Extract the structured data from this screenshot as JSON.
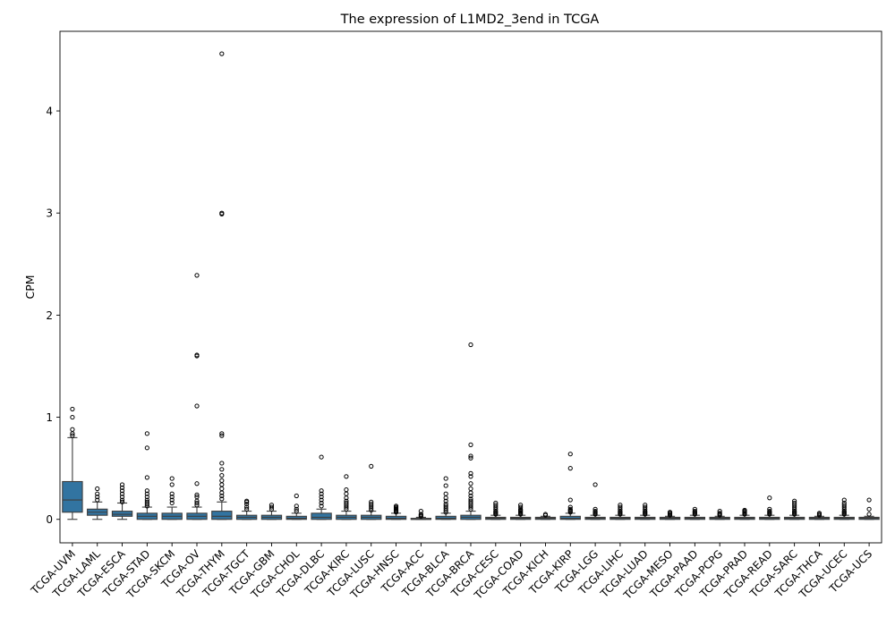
{
  "chart_data": {
    "type": "box",
    "title": "The expression of L1MD2_3end in TCGA",
    "xlabel": "",
    "ylabel": "CPM",
    "ylim": [
      -0.23,
      4.78
    ],
    "yticks": [
      0,
      1,
      2,
      3,
      4
    ],
    "grid": false,
    "box_color": "#3274a1",
    "categories": [
      "TCGA-UVM",
      "TCGA-LAML",
      "TCGA-ESCA",
      "TCGA-STAD",
      "TCGA-SKCM",
      "TCGA-OV",
      "TCGA-THYM",
      "TCGA-TGCT",
      "TCGA-GBM",
      "TCGA-CHOL",
      "TCGA-DLBC",
      "TCGA-KIRC",
      "TCGA-LUSC",
      "TCGA-HNSC",
      "TCGA-ACC",
      "TCGA-BLCA",
      "TCGA-BRCA",
      "TCGA-CESC",
      "TCGA-COAD",
      "TCGA-KICH",
      "TCGA-KIRP",
      "TCGA-LGG",
      "TCGA-LIHC",
      "TCGA-LUAD",
      "TCGA-MESO",
      "TCGA-PAAD",
      "TCGA-PCPG",
      "TCGA-PRAD",
      "TCGA-READ",
      "TCGA-SARC",
      "TCGA-THCA",
      "TCGA-UCEC",
      "TCGA-UCS"
    ],
    "boxes": [
      {
        "min": 0.0,
        "q1": 0.07,
        "median": 0.19,
        "q3": 0.37,
        "max": 0.8,
        "outliers": [
          0.82,
          0.84,
          0.88,
          1.0,
          1.08
        ]
      },
      {
        "min": 0.0,
        "q1": 0.04,
        "median": 0.07,
        "q3": 0.1,
        "max": 0.17,
        "outliers": [
          0.19,
          0.22,
          0.25,
          0.3
        ]
      },
      {
        "min": 0.0,
        "q1": 0.03,
        "median": 0.05,
        "q3": 0.08,
        "max": 0.16,
        "outliers": [
          0.17,
          0.19,
          0.22,
          0.25,
          0.28,
          0.31,
          0.34
        ]
      },
      {
        "min": 0.0,
        "q1": 0.0,
        "median": 0.03,
        "q3": 0.06,
        "max": 0.12,
        "outliers": [
          0.13,
          0.15,
          0.17,
          0.19,
          0.22,
          0.25,
          0.28,
          0.41,
          0.7,
          0.84
        ]
      },
      {
        "min": 0.0,
        "q1": 0.0,
        "median": 0.03,
        "q3": 0.06,
        "max": 0.12,
        "outliers": [
          0.16,
          0.19,
          0.22,
          0.25,
          0.34,
          0.4
        ]
      },
      {
        "min": 0.0,
        "q1": 0.0,
        "median": 0.03,
        "q3": 0.06,
        "max": 0.12,
        "outliers": [
          0.14,
          0.16,
          0.18,
          0.22,
          0.24,
          0.35,
          1.11,
          1.6,
          1.61,
          2.39
        ]
      },
      {
        "min": 0.0,
        "q1": 0.0,
        "median": 0.03,
        "q3": 0.08,
        "max": 0.17,
        "outliers": [
          0.2,
          0.23,
          0.26,
          0.3,
          0.34,
          0.38,
          0.43,
          0.49,
          0.55,
          0.82,
          0.84,
          2.99,
          3.0,
          4.56
        ]
      },
      {
        "min": 0.0,
        "q1": 0.0,
        "median": 0.02,
        "q3": 0.04,
        "max": 0.08,
        "outliers": [
          0.1,
          0.12,
          0.15,
          0.17,
          0.18
        ]
      },
      {
        "min": 0.0,
        "q1": 0.0,
        "median": 0.02,
        "q3": 0.04,
        "max": 0.08,
        "outliers": [
          0.1,
          0.12,
          0.14
        ]
      },
      {
        "min": 0.0,
        "q1": 0.0,
        "median": 0.01,
        "q3": 0.03,
        "max": 0.06,
        "outliers": [
          0.08,
          0.1,
          0.13,
          0.23
        ]
      },
      {
        "min": 0.0,
        "q1": 0.0,
        "median": 0.02,
        "q3": 0.06,
        "max": 0.1,
        "outliers": [
          0.13,
          0.16,
          0.19,
          0.22,
          0.25,
          0.28,
          0.61
        ]
      },
      {
        "min": 0.0,
        "q1": 0.0,
        "median": 0.02,
        "q3": 0.04,
        "max": 0.08,
        "outliers": [
          0.1,
          0.12,
          0.14,
          0.16,
          0.18,
          0.21,
          0.25,
          0.29,
          0.42
        ]
      },
      {
        "min": 0.0,
        "q1": 0.0,
        "median": 0.02,
        "q3": 0.04,
        "max": 0.08,
        "outliers": [
          0.09,
          0.11,
          0.13,
          0.15,
          0.17,
          0.52
        ]
      },
      {
        "min": 0.0,
        "q1": 0.0,
        "median": 0.01,
        "q3": 0.03,
        "max": 0.06,
        "outliers": [
          0.07,
          0.08,
          0.09,
          0.1,
          0.11,
          0.12,
          0.13
        ]
      },
      {
        "min": 0.0,
        "q1": 0.0,
        "median": 0.0,
        "q3": 0.01,
        "max": 0.02,
        "outliers": [
          0.03,
          0.04,
          0.05,
          0.08
        ]
      },
      {
        "min": 0.0,
        "q1": 0.0,
        "median": 0.01,
        "q3": 0.03,
        "max": 0.06,
        "outliers": [
          0.07,
          0.09,
          0.11,
          0.13,
          0.15,
          0.18,
          0.21,
          0.25,
          0.33,
          0.4
        ]
      },
      {
        "min": 0.0,
        "q1": 0.0,
        "median": 0.02,
        "q3": 0.04,
        "max": 0.08,
        "outliers": [
          0.1,
          0.12,
          0.14,
          0.16,
          0.18,
          0.2,
          0.23,
          0.26,
          0.3,
          0.35,
          0.42,
          0.45,
          0.6,
          0.62,
          0.73,
          1.71
        ]
      },
      {
        "min": 0.0,
        "q1": 0.0,
        "median": 0.01,
        "q3": 0.02,
        "max": 0.04,
        "outliers": [
          0.05,
          0.06,
          0.07,
          0.08,
          0.1,
          0.12,
          0.14,
          0.16
        ]
      },
      {
        "min": 0.0,
        "q1": 0.0,
        "median": 0.01,
        "q3": 0.02,
        "max": 0.04,
        "outliers": [
          0.05,
          0.06,
          0.07,
          0.08,
          0.09,
          0.1,
          0.12,
          0.14
        ]
      },
      {
        "min": 0.0,
        "q1": 0.0,
        "median": 0.01,
        "q3": 0.02,
        "max": 0.03,
        "outliers": [
          0.04,
          0.05
        ]
      },
      {
        "min": 0.0,
        "q1": 0.0,
        "median": 0.01,
        "q3": 0.03,
        "max": 0.06,
        "outliers": [
          0.07,
          0.08,
          0.09,
          0.1,
          0.12,
          0.19,
          0.5,
          0.64
        ]
      },
      {
        "min": 0.0,
        "q1": 0.0,
        "median": 0.01,
        "q3": 0.02,
        "max": 0.04,
        "outliers": [
          0.05,
          0.06,
          0.07,
          0.08,
          0.1,
          0.34
        ]
      },
      {
        "min": 0.0,
        "q1": 0.0,
        "median": 0.01,
        "q3": 0.02,
        "max": 0.04,
        "outliers": [
          0.05,
          0.06,
          0.07,
          0.08,
          0.1,
          0.12,
          0.14
        ]
      },
      {
        "min": 0.0,
        "q1": 0.0,
        "median": 0.01,
        "q3": 0.02,
        "max": 0.04,
        "outliers": [
          0.05,
          0.06,
          0.07,
          0.08,
          0.1,
          0.12,
          0.14
        ]
      },
      {
        "min": 0.0,
        "q1": 0.0,
        "median": 0.01,
        "q3": 0.02,
        "max": 0.03,
        "outliers": [
          0.04,
          0.05,
          0.06,
          0.07
        ]
      },
      {
        "min": 0.0,
        "q1": 0.0,
        "median": 0.01,
        "q3": 0.02,
        "max": 0.04,
        "outliers": [
          0.05,
          0.06,
          0.07,
          0.08,
          0.1
        ]
      },
      {
        "min": 0.0,
        "q1": 0.0,
        "median": 0.01,
        "q3": 0.02,
        "max": 0.03,
        "outliers": [
          0.04,
          0.05,
          0.06,
          0.08
        ]
      },
      {
        "min": 0.0,
        "q1": 0.0,
        "median": 0.01,
        "q3": 0.02,
        "max": 0.04,
        "outliers": [
          0.05,
          0.06,
          0.07,
          0.08,
          0.09
        ]
      },
      {
        "min": 0.0,
        "q1": 0.0,
        "median": 0.01,
        "q3": 0.02,
        "max": 0.04,
        "outliers": [
          0.05,
          0.06,
          0.07,
          0.08,
          0.1,
          0.21
        ]
      },
      {
        "min": 0.0,
        "q1": 0.0,
        "median": 0.01,
        "q3": 0.02,
        "max": 0.04,
        "outliers": [
          0.05,
          0.06,
          0.07,
          0.08,
          0.1,
          0.12,
          0.14,
          0.16,
          0.18
        ]
      },
      {
        "min": 0.0,
        "q1": 0.0,
        "median": 0.01,
        "q3": 0.02,
        "max": 0.03,
        "outliers": [
          0.04,
          0.05,
          0.06
        ]
      },
      {
        "min": 0.0,
        "q1": 0.0,
        "median": 0.01,
        "q3": 0.02,
        "max": 0.04,
        "outliers": [
          0.05,
          0.06,
          0.07,
          0.08,
          0.1,
          0.12,
          0.14,
          0.16,
          0.19
        ]
      },
      {
        "min": 0.0,
        "q1": 0.0,
        "median": 0.01,
        "q3": 0.02,
        "max": 0.03,
        "outliers": [
          0.05,
          0.1,
          0.19
        ]
      }
    ]
  }
}
